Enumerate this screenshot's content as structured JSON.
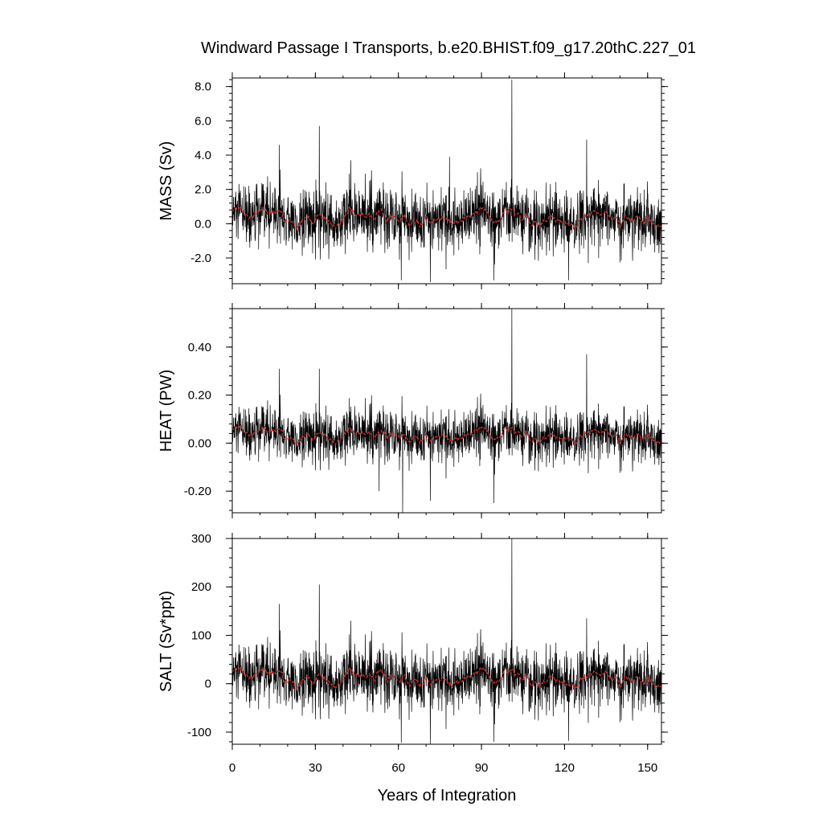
{
  "chart_data": {
    "type": "line",
    "title": "Windward Passage I Transports, b.e20.BHIST.f09_g17.20thC.227_01",
    "xlabel": "Years of Integration",
    "xlim": [
      0,
      155
    ],
    "x_ticks": [
      0,
      30,
      60,
      90,
      120,
      150
    ],
    "x_tick_labels": [
      "0",
      "30",
      "60",
      "90",
      "120",
      "150"
    ],
    "n_points": 1860,
    "line_colors": {
      "raw": "#000000",
      "smoothed": "#e03030"
    },
    "panels": [
      {
        "id": "mass",
        "ylabel": "MASS (Sv)",
        "ylim": [
          -3.5,
          8.5
        ],
        "y_ticks": [
          -2.0,
          0.0,
          2.0,
          4.0,
          6.0,
          8.0
        ],
        "y_tick_labels": [
          "-2.0",
          "0.0",
          "2.0",
          "4.0",
          "6.0",
          "8.0"
        ],
        "series_mean": 0.3,
        "series_std": 1.0,
        "spikes": [
          {
            "x": 31.4,
            "y": 5.7
          },
          {
            "x": 101.0,
            "y": 8.4
          },
          {
            "x": 17.0,
            "y": 4.6
          },
          {
            "x": 128.0,
            "y": 4.9
          },
          {
            "x": 42.8,
            "y": 3.7
          },
          {
            "x": 78.5,
            "y": 3.9
          },
          {
            "x": 61.0,
            "y": -3.3
          },
          {
            "x": 71.5,
            "y": -3.4
          },
          {
            "x": 94.5,
            "y": -3.3
          },
          {
            "x": 121.5,
            "y": -3.3
          }
        ]
      },
      {
        "id": "heat",
        "ylabel": "HEAT (PW)",
        "ylim": [
          -0.29,
          0.56
        ],
        "y_ticks": [
          -0.2,
          0.0,
          0.2,
          0.4
        ],
        "y_tick_labels": [
          "-0.20",
          "0.00",
          "0.20",
          "0.40"
        ],
        "series_mean": 0.03,
        "series_std": 0.06,
        "spikes": [
          {
            "x": 101.0,
            "y": 0.56
          },
          {
            "x": 128.0,
            "y": 0.37
          },
          {
            "x": 17.0,
            "y": 0.31
          },
          {
            "x": 31.4,
            "y": 0.31
          },
          {
            "x": 61.5,
            "y": -0.29
          },
          {
            "x": 71.5,
            "y": -0.24
          },
          {
            "x": 94.5,
            "y": -0.25
          },
          {
            "x": 53.0,
            "y": -0.2
          }
        ]
      },
      {
        "id": "salt",
        "ylabel": "SALT (Sv*ppt)",
        "ylim": [
          -125,
          300
        ],
        "y_ticks": [
          -100,
          0,
          100,
          200,
          300
        ],
        "y_tick_labels": [
          "-100",
          "0",
          "100",
          "200",
          "300"
        ],
        "series_mean": 10,
        "series_std": 35,
        "spikes": [
          {
            "x": 101.0,
            "y": 300
          },
          {
            "x": 31.4,
            "y": 205
          },
          {
            "x": 17.0,
            "y": 165
          },
          {
            "x": 128.0,
            "y": 135
          },
          {
            "x": 42.8,
            "y": 130
          },
          {
            "x": 61.0,
            "y": -122
          },
          {
            "x": 71.5,
            "y": -125
          },
          {
            "x": 94.5,
            "y": -120
          },
          {
            "x": 121.5,
            "y": -118
          }
        ]
      }
    ]
  }
}
